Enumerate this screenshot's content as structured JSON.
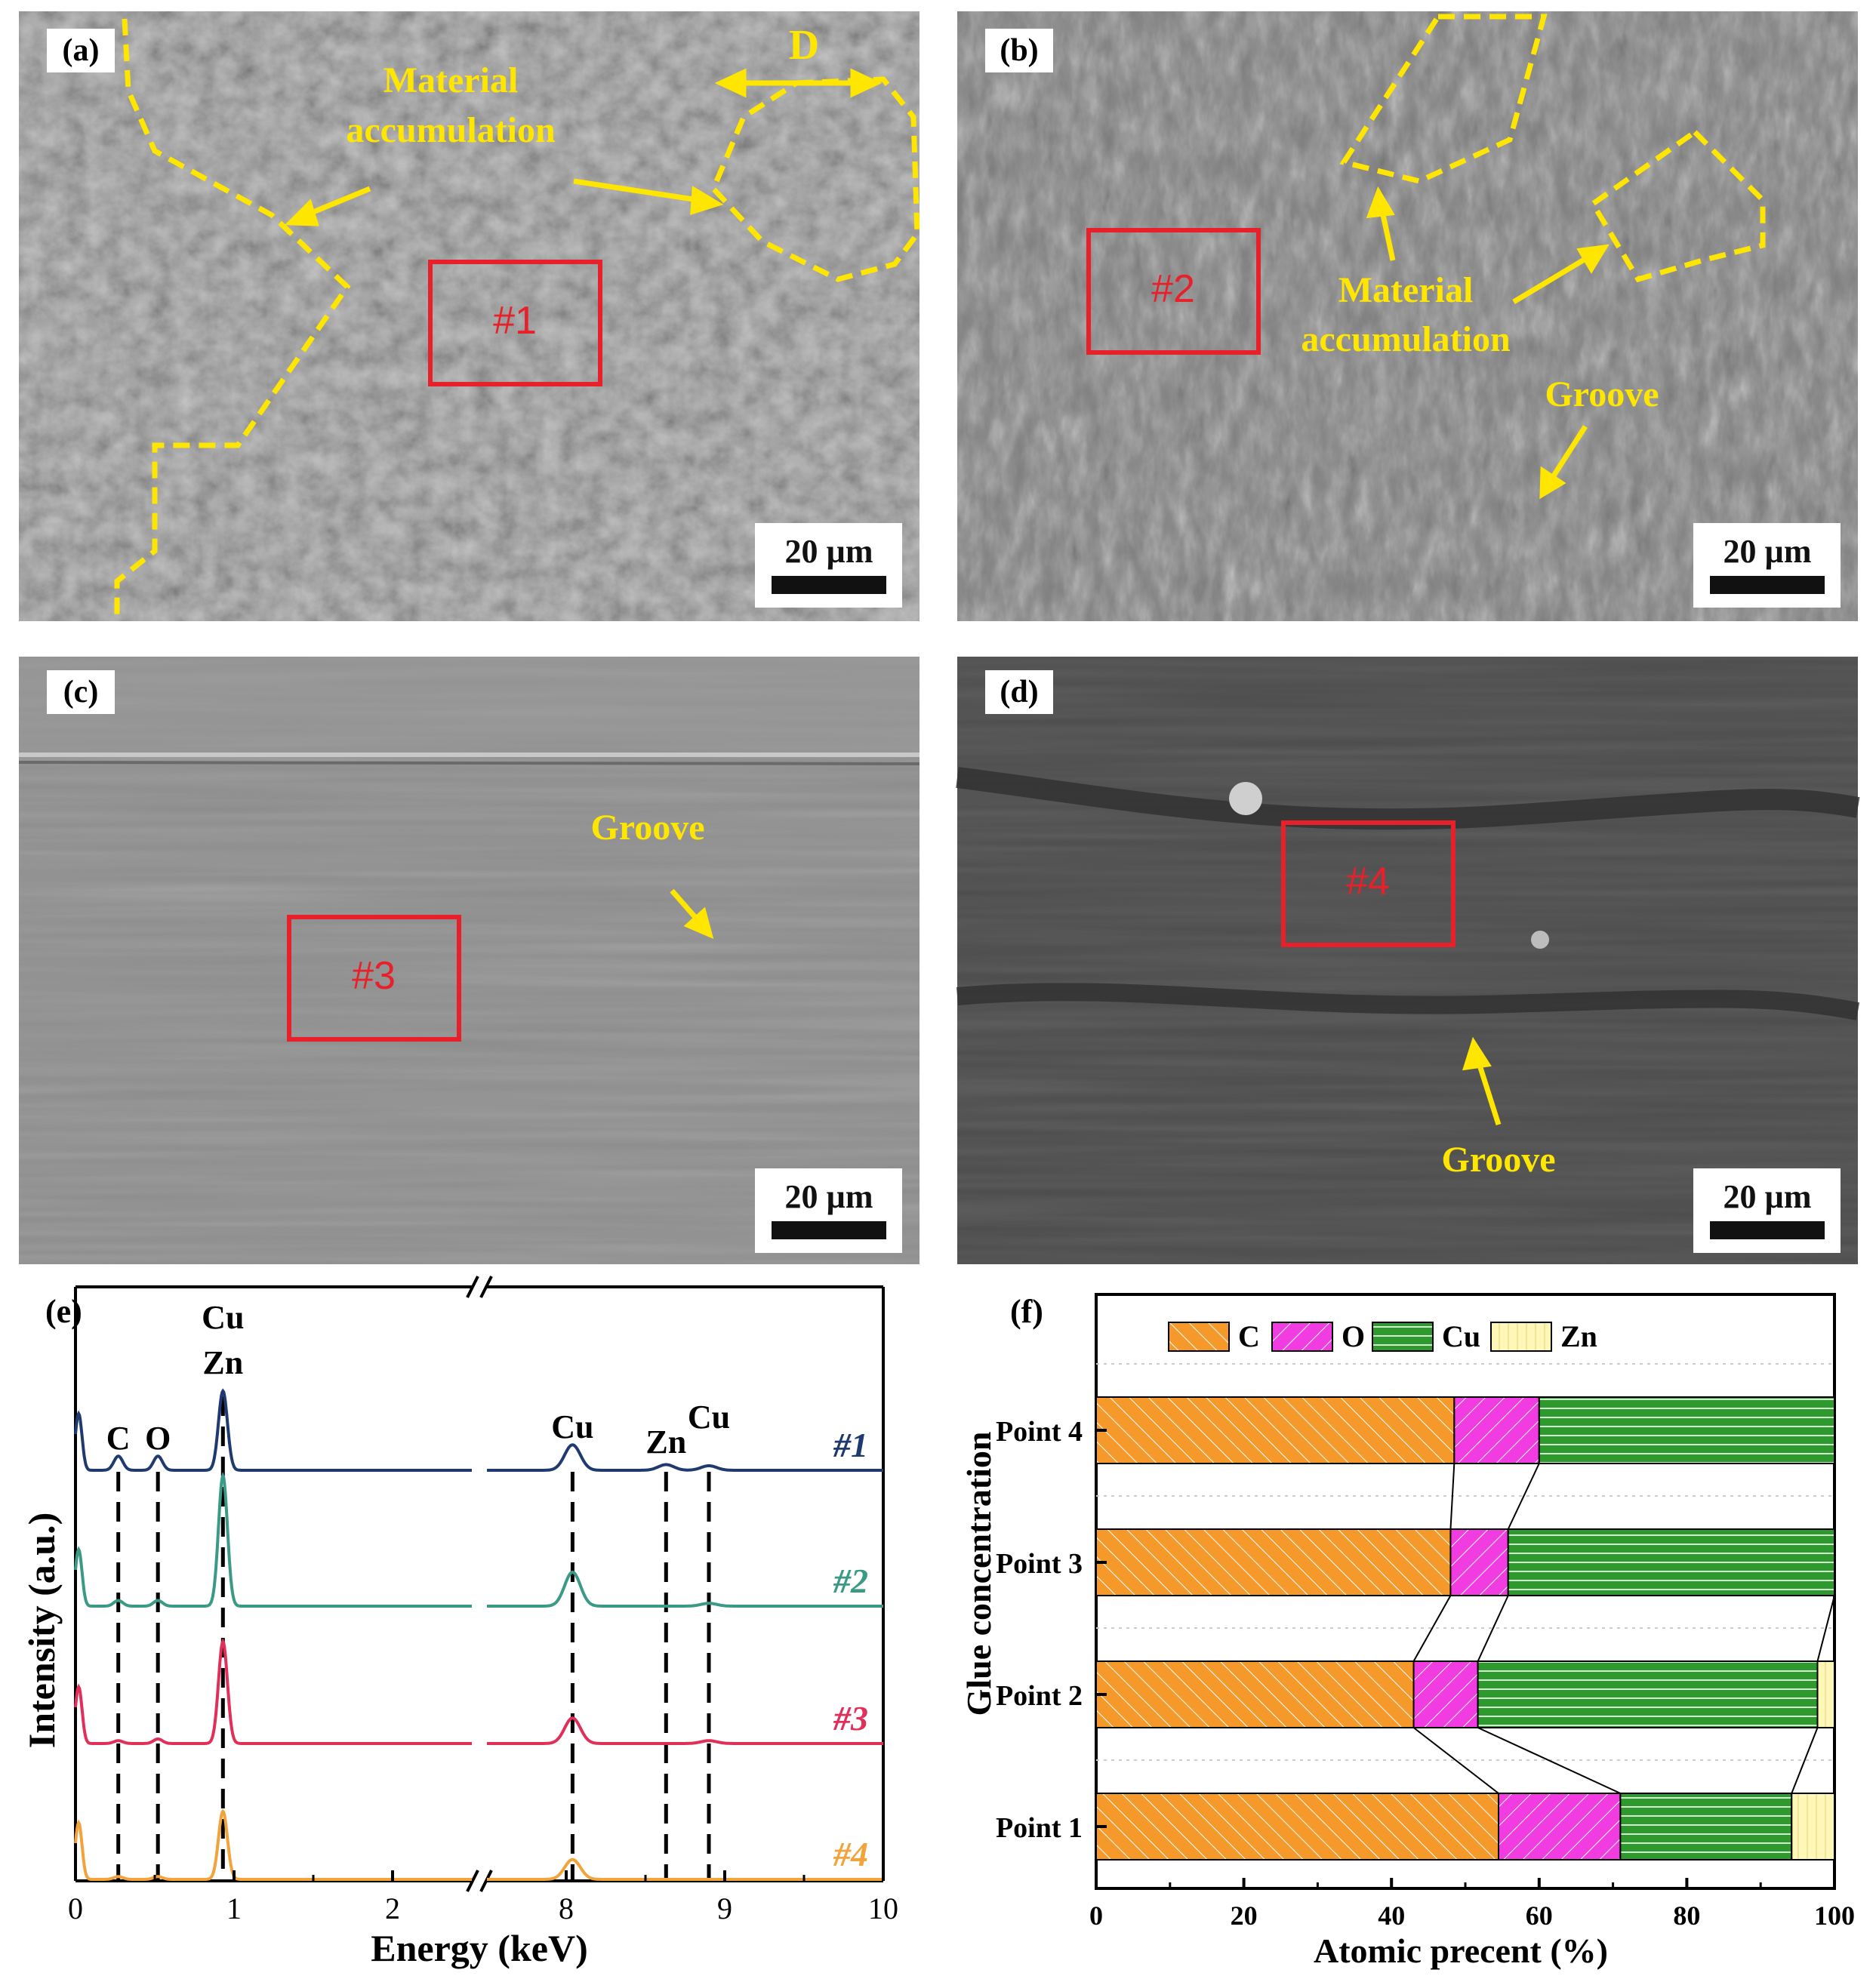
{
  "colors": {
    "annotation_yellow": "#ffe600",
    "roi_red": "#e8202a",
    "spec1": "#1f3a6e",
    "spec2": "#3a9a86",
    "spec3": "#e0305a",
    "spec4": "#f3a33b",
    "C": "#f59a2a",
    "O": "#f03ce0",
    "Cu": "#2e9a2e",
    "Zn": "#fff7b8"
  },
  "panels": {
    "a": {
      "label": "(a)",
      "annotations": [
        "Material",
        "accumulation",
        "D"
      ],
      "roi": "#1",
      "scale_bar": "20 µm"
    },
    "b": {
      "label": "(b)",
      "annotations": [
        "Material",
        "accumulation",
        "Groove"
      ],
      "roi": "#2",
      "scale_bar": "20 µm"
    },
    "c": {
      "label": "(c)",
      "annotations": [
        "Groove"
      ],
      "roi": "#3",
      "scale_bar": "20 µm"
    },
    "d": {
      "label": "(d)",
      "annotations": [
        "Groove"
      ],
      "roi": "#4",
      "scale_bar": "20 µm"
    }
  },
  "chart_data": [
    {
      "panel": "(e)",
      "type": "line",
      "xlabel": "Energy (keV)",
      "ylabel": "Intensity (a.u.)",
      "x_ticks_left": [
        "0",
        "1",
        "2"
      ],
      "x_ticks_right": [
        "8",
        "9",
        "10"
      ],
      "x_axis_break": [
        2.5,
        7.5
      ],
      "peak_labels": [
        {
          "text": "C",
          "x": 0.27
        },
        {
          "text": "O",
          "x": 0.52
        },
        {
          "text": "Cu",
          "x": 0.93
        },
        {
          "text": "Zn",
          "x": 0.93
        },
        {
          "text": "Cu",
          "x": 8.04
        },
        {
          "text": "Zn",
          "x": 8.63
        },
        {
          "text": "Cu",
          "x": 8.9
        }
      ],
      "dashed_lines_x": [
        0.27,
        0.52,
        0.93,
        8.04,
        8.63,
        8.9
      ],
      "series": [
        {
          "name": "#1",
          "peaks": [
            [
              0.02,
              1.0
            ],
            [
              0.27,
              0.25
            ],
            [
              0.52,
              0.25
            ],
            [
              0.93,
              1.4
            ],
            [
              8.04,
              0.45
            ],
            [
              8.63,
              0.1
            ],
            [
              8.9,
              0.08
            ]
          ]
        },
        {
          "name": "#2",
          "peaks": [
            [
              0.02,
              1.0
            ],
            [
              0.27,
              0.1
            ],
            [
              0.52,
              0.1
            ],
            [
              0.93,
              2.3
            ],
            [
              8.04,
              0.6
            ],
            [
              8.9,
              0.05
            ]
          ]
        },
        {
          "name": "#3",
          "peaks": [
            [
              0.02,
              1.0
            ],
            [
              0.27,
              0.05
            ],
            [
              0.52,
              0.08
            ],
            [
              0.93,
              1.8
            ],
            [
              8.04,
              0.45
            ],
            [
              8.9,
              0.05
            ]
          ]
        },
        {
          "name": "#4",
          "peaks": [
            [
              0.02,
              1.0
            ],
            [
              0.27,
              0.05
            ],
            [
              0.52,
              0.05
            ],
            [
              0.93,
              1.2
            ],
            [
              8.04,
              0.35
            ]
          ]
        }
      ]
    },
    {
      "panel": "(f)",
      "type": "bar",
      "orientation": "horizontal",
      "stacked": true,
      "xlabel": "Atomic precent (%)",
      "ylabel": "Glue concentration",
      "xlim": [
        0,
        100
      ],
      "x_ticks": [
        "0",
        "20",
        "40",
        "60",
        "80",
        "100"
      ],
      "categories": [
        "Point 4",
        "Point 3",
        "Point 2",
        "Point 1"
      ],
      "legend": [
        "C",
        "O",
        "Cu",
        "Zn"
      ],
      "legend_position": "top",
      "series": [
        {
          "name": "C",
          "values": [
            48.5,
            48.0,
            43.0,
            54.5
          ]
        },
        {
          "name": "O",
          "values": [
            11.5,
            7.8,
            8.7,
            16.5
          ]
        },
        {
          "name": "Cu",
          "values": [
            40.0,
            44.2,
            46.0,
            23.2
          ]
        },
        {
          "name": "Zn",
          "values": [
            0.0,
            0.0,
            2.3,
            5.8
          ]
        }
      ]
    }
  ]
}
